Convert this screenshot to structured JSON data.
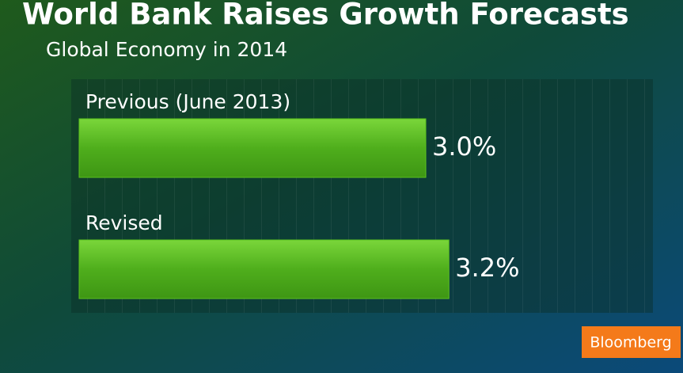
{
  "chart_data": {
    "type": "hbar",
    "title": "World Bank Raises Growth Forecasts",
    "subtitle": "Global Economy in 2014",
    "categories": [
      "Previous (June 2013)",
      "Revised"
    ],
    "values": [
      3.0,
      3.2
    ],
    "value_labels": [
      "3.0%",
      "3.2%"
    ],
    "color": "#5cc21e"
  },
  "logo": "Bloomberg"
}
